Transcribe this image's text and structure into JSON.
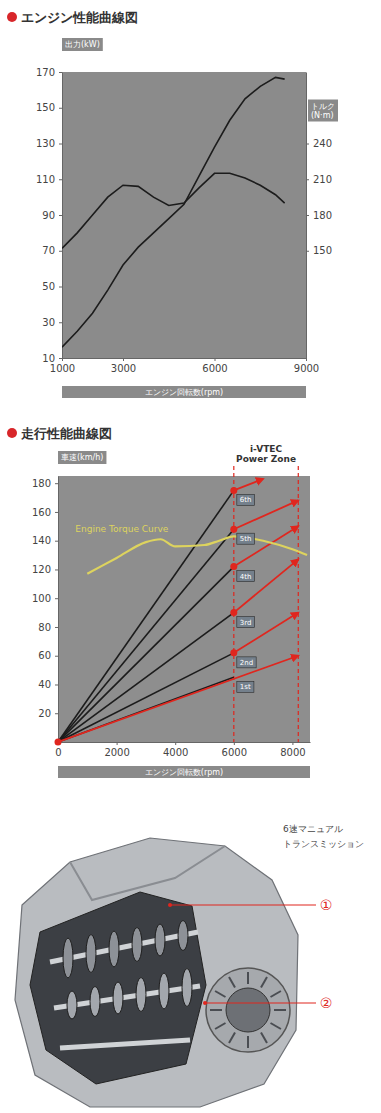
{
  "chart_data": [
    {
      "type": "line",
      "title": "エンジン性能曲線図",
      "y_label": "出力(kW)",
      "y2_label": "トルク (N·m)",
      "x_label": "エンジン回転数(rpm)",
      "x": [
        1000,
        1500,
        2000,
        2500,
        3000,
        3500,
        4000,
        4500,
        5000,
        5500,
        6000,
        6500,
        7000,
        7500,
        8000,
        8300
      ],
      "series": [
        {
          "color": "#1c1c1c",
          "values": [
            16,
            25,
            35,
            48,
            62,
            72,
            80,
            88,
            96,
            112,
            128,
            143,
            155,
            162,
            167,
            166
          ]
        },
        {
          "color": "#1c1c1c",
          "axis": "y2",
          "values": [
            152,
            165,
            180,
            195,
            205,
            204,
            195,
            188,
            190,
            203,
            215,
            215,
            211,
            205,
            197,
            190
          ]
        }
      ],
      "xlim": [
        1000,
        9000
      ],
      "xticks": [
        1000,
        3000,
        6000,
        9000
      ],
      "ylim": [
        10,
        170
      ],
      "yticks": [
        10,
        30,
        50,
        70,
        90,
        110,
        130,
        150,
        170
      ],
      "y2lim": [
        60,
        300
      ],
      "y2ticks": [
        150,
        180,
        210,
        240
      ],
      "grid": false
    },
    {
      "type": "line",
      "title": "走行性能曲線図",
      "y_label": "車速(km/h)",
      "x_label": "エンジン回転数(rpm)",
      "xlim": [
        0,
        8600
      ],
      "xticks": [
        0,
        2000,
        4000,
        6000,
        8000
      ],
      "ylim": [
        0,
        185
      ],
      "yticks": [
        20,
        40,
        60,
        80,
        100,
        120,
        140,
        160,
        180
      ],
      "grid": false,
      "series": [
        {
          "name": "1st",
          "type": "line",
          "color": "#1c1c1c",
          "x": [
            0,
            6000
          ],
          "values": [
            0,
            45
          ]
        },
        {
          "name": "2nd",
          "type": "line",
          "color": "#1c1c1c",
          "x": [
            0,
            6000
          ],
          "values": [
            0,
            62
          ]
        },
        {
          "name": "3rd",
          "type": "line",
          "color": "#1c1c1c",
          "x": [
            0,
            6000
          ],
          "values": [
            0,
            90
          ]
        },
        {
          "name": "4th",
          "type": "line",
          "color": "#1c1c1c",
          "x": [
            0,
            6000
          ],
          "values": [
            0,
            122
          ]
        },
        {
          "name": "5th",
          "type": "line",
          "color": "#1c1c1c",
          "x": [
            0,
            6000
          ],
          "values": [
            0,
            148
          ]
        },
        {
          "name": "6th",
          "type": "line",
          "color": "#1c1c1c",
          "x": [
            0,
            6000
          ],
          "values": [
            0,
            175
          ]
        },
        {
          "type": "arrow",
          "marker": "circle",
          "color": "#e0261e",
          "x": [
            0,
            8200
          ],
          "values": [
            0,
            60
          ]
        },
        {
          "type": "arrow",
          "marker": "circle",
          "color": "#e0261e",
          "x": [
            6000,
            8200
          ],
          "values": [
            62,
            90
          ]
        },
        {
          "type": "arrow",
          "marker": "circle",
          "color": "#e0261e",
          "x": [
            6000,
            8200
          ],
          "values": [
            90,
            127
          ]
        },
        {
          "type": "arrow",
          "marker": "circle",
          "color": "#e0261e",
          "x": [
            6000,
            8200
          ],
          "values": [
            122,
            150
          ]
        },
        {
          "type": "arrow",
          "marker": "circle",
          "color": "#e0261e",
          "x": [
            6000,
            8200
          ],
          "values": [
            148,
            168
          ]
        },
        {
          "type": "arrow",
          "marker": "circle",
          "color": "#e0261e",
          "x": [
            6000,
            7000
          ],
          "values": [
            175,
            183
          ]
        },
        {
          "name": "Engine Torque Curve",
          "type": "spline",
          "color": "#ddd35e",
          "x": [
            1000,
            2000,
            3000,
            3500,
            4000,
            5000,
            5500,
            6000,
            6500,
            7000,
            8000,
            8500
          ],
          "values": [
            117,
            128,
            139,
            141,
            136,
            137,
            140,
            143,
            142,
            140,
            134,
            130
          ]
        }
      ],
      "annotations": [
        {
          "text": "i-VTEC Power Zone",
          "x": [
            6000,
            8200
          ],
          "color": "#e0261e"
        }
      ]
    }
  ],
  "transmission": {
    "label": [
      "6速マニュアル",
      "トランスミッション"
    ],
    "callouts": [
      "①",
      "②"
    ]
  }
}
